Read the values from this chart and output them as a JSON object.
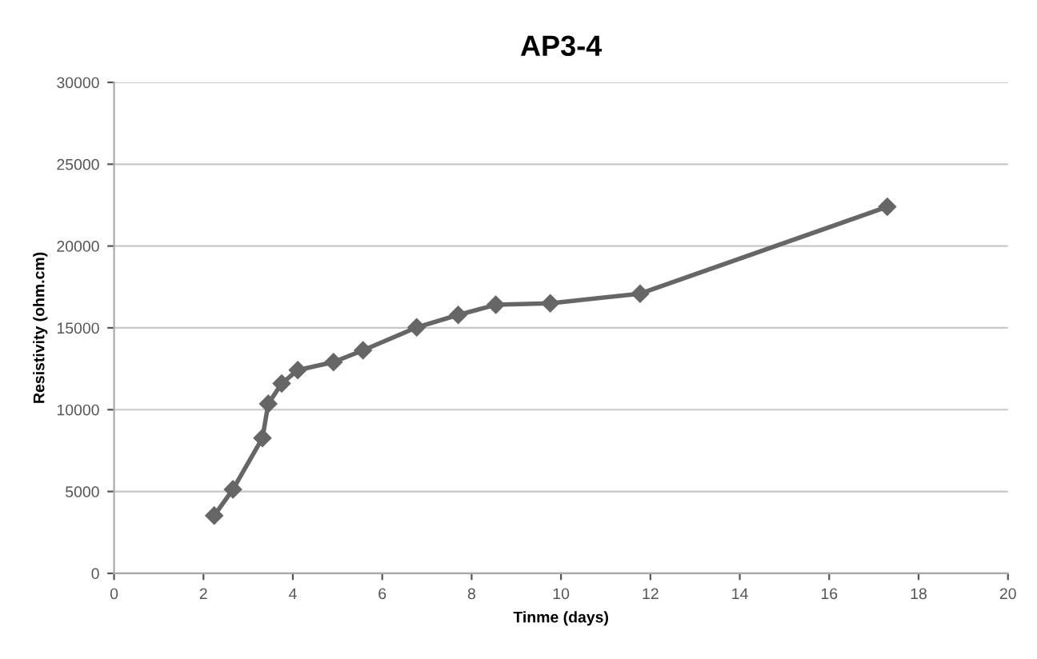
{
  "chart_data": {
    "type": "line",
    "title": "AP3-4",
    "xlabel": "Tinme (days)",
    "ylabel": "Resistivity (ohm.cm)",
    "x": [
      2.24,
      2.66,
      3.32,
      3.45,
      3.75,
      4.11,
      4.91,
      5.57,
      6.77,
      7.7,
      8.54,
      9.76,
      11.77,
      17.3
    ],
    "values": [
      3530,
      5130,
      8270,
      10360,
      11600,
      12420,
      12910,
      13630,
      15030,
      15790,
      16410,
      16500,
      17090,
      22400
    ],
    "color": "#666666",
    "marker": "diamond",
    "line_style": "solid",
    "xlim": [
      0,
      20
    ],
    "xticks": [
      0,
      2,
      4,
      6,
      8,
      10,
      12,
      14,
      16,
      18,
      20
    ],
    "ylim": [
      0,
      30000
    ],
    "yticks": [
      0,
      5000,
      10000,
      15000,
      20000,
      25000,
      30000
    ],
    "grid": "y",
    "legend": false
  }
}
